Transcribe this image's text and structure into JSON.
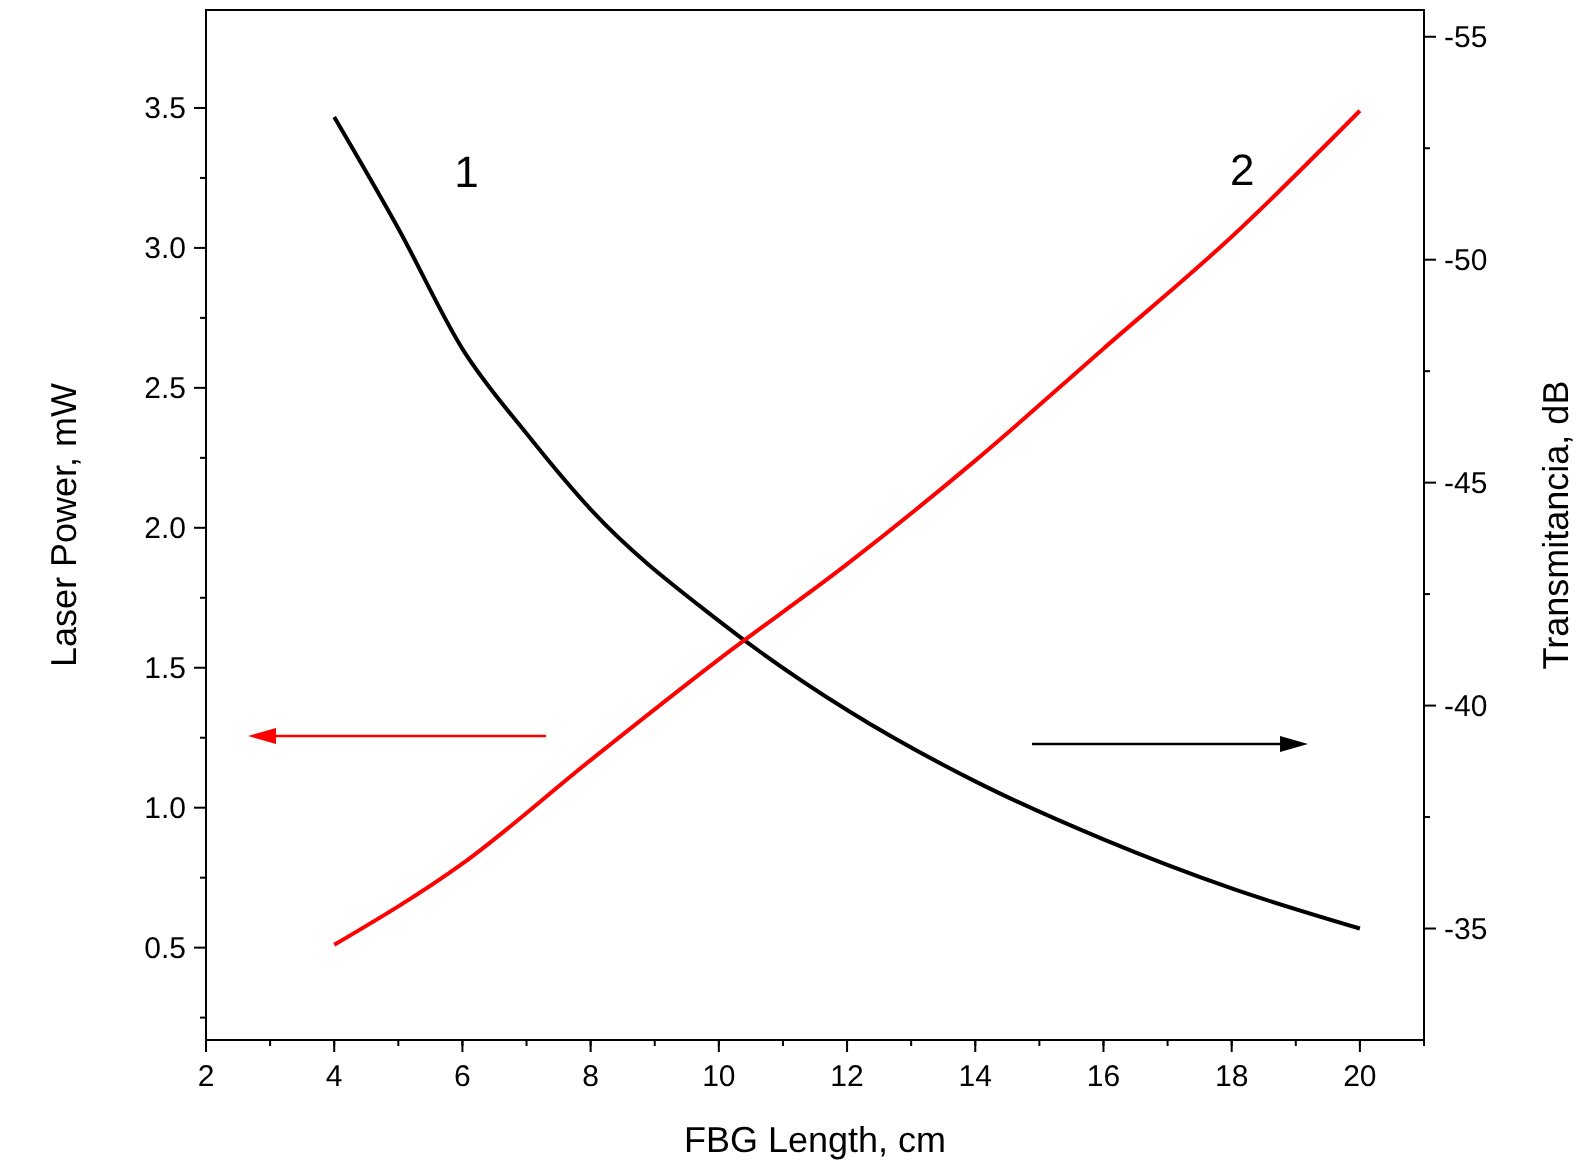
{
  "chart_data": {
    "type": "line",
    "xlabel": "FBG Length, cm",
    "ylabel": "Laser Power,  mW",
    "y2label": "Transmitancia, dB",
    "xlim": [
      2,
      21
    ],
    "xticks": [
      2,
      4,
      6,
      8,
      10,
      12,
      14,
      16,
      18,
      20
    ],
    "ylim": [
      0.17,
      3.85
    ],
    "yticks": [
      0.5,
      {
        "value": 1,
        "label": "1.0"
      },
      1.5,
      {
        "value": 2,
        "label": "2.0"
      },
      2.5,
      {
        "value": 3,
        "label": "3.0"
      },
      3.5
    ],
    "y2lim": [
      -32.5,
      -55.6
    ],
    "y2ticks": [
      -35,
      -40,
      -45,
      -50,
      -55
    ],
    "grid": false,
    "marker": "none",
    "line_style": "solid",
    "series": [
      {
        "name": "1",
        "color": "#000000",
        "axis": "y2",
        "x": [
          4,
          5,
          6,
          7,
          8,
          10,
          12,
          14,
          16,
          18,
          20
        ],
        "values": [
          -53.2,
          -50.7,
          -48.0,
          -46.1,
          -44.4,
          -41.9,
          -39.9,
          -38.3,
          -37.0,
          -35.9,
          -35.0
        ]
      },
      {
        "name": "2",
        "color": "#ff0000",
        "x": [
          4,
          6,
          8,
          10,
          12,
          14,
          16,
          18,
          20
        ],
        "values": [
          0.51,
          0.8,
          1.17,
          1.53,
          1.87,
          2.24,
          2.64,
          3.04,
          3.49
        ]
      }
    ]
  }
}
